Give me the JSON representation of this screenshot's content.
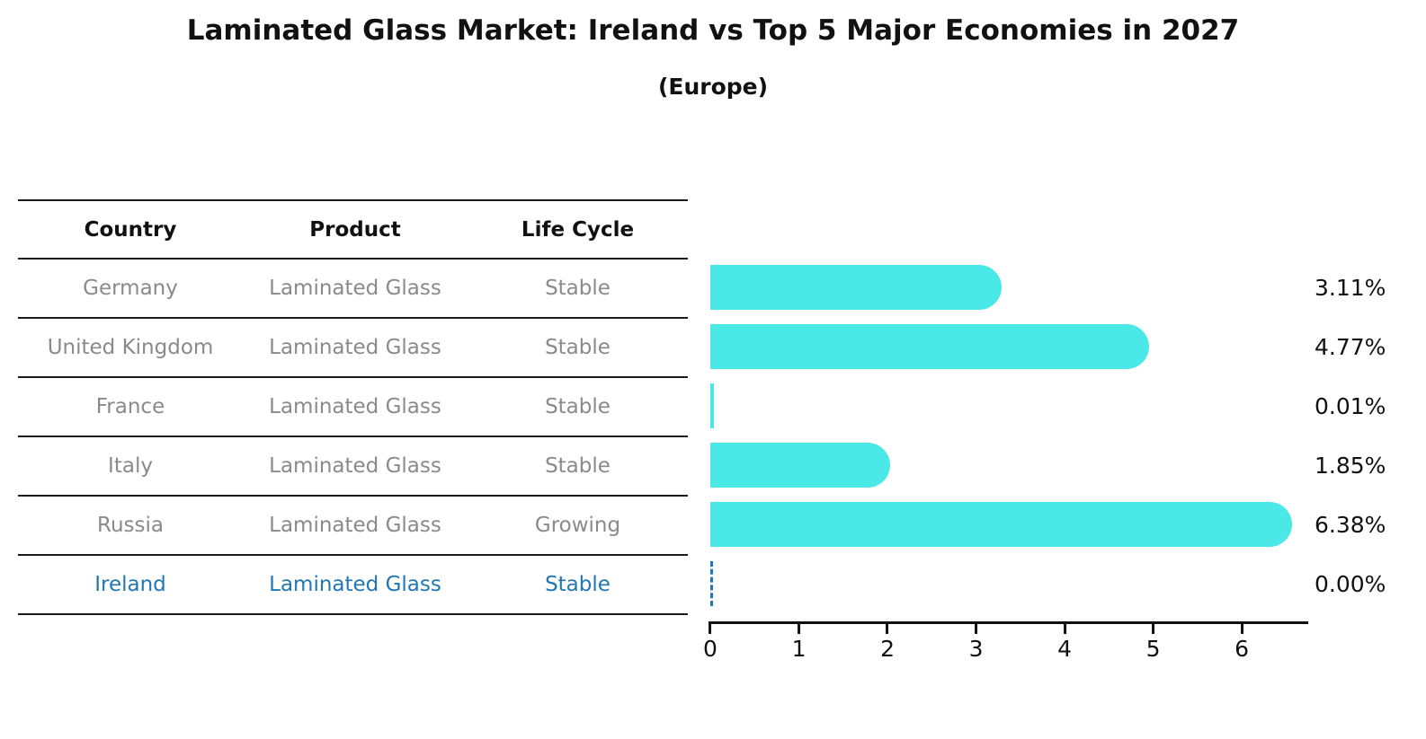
{
  "header": {
    "title": "Laminated Glass Market: Ireland vs Top 5 Major Economies in 2027",
    "subtitle": "(Europe)"
  },
  "table": {
    "columns": [
      "Country",
      "Product",
      "Life Cycle"
    ],
    "rows": [
      {
        "country": "Germany",
        "product": "Laminated Glass",
        "life_cycle": "Stable",
        "highlight": false
      },
      {
        "country": "United Kingdom",
        "product": "Laminated Glass",
        "life_cycle": "Stable",
        "highlight": false
      },
      {
        "country": "France",
        "product": "Laminated Glass",
        "life_cycle": "Stable",
        "highlight": false
      },
      {
        "country": "Italy",
        "product": "Laminated Glass",
        "life_cycle": "Stable",
        "highlight": false
      },
      {
        "country": "Russia",
        "product": "Laminated Glass",
        "life_cycle": "Growing",
        "highlight": false
      },
      {
        "country": "Ireland",
        "product": "Laminated Glass",
        "life_cycle": "Stable",
        "highlight": true
      }
    ]
  },
  "chart_data": {
    "type": "bar",
    "orientation": "horizontal",
    "title": "Laminated Glass Market: Ireland vs Top 5 Major Economies in 2027",
    "subtitle": "(Europe)",
    "categories": [
      "Germany",
      "United Kingdom",
      "France",
      "Italy",
      "Russia",
      "Ireland"
    ],
    "values": [
      3.11,
      4.77,
      0.01,
      1.85,
      6.38,
      0.0
    ],
    "value_labels": [
      "3.11%",
      "4.77%",
      "0.01%",
      "1.85%",
      "6.38%",
      "0.00%"
    ],
    "xticks": [
      0,
      1,
      2,
      3,
      4,
      5,
      6
    ],
    "xlim": [
      0,
      6.75
    ],
    "grid": false,
    "value_label_position": "right",
    "bar_color": "#4be8e8",
    "highlight_color": "#1f77b4",
    "highlight_index": 5,
    "highlight_style": "dashed-zero-line"
  }
}
